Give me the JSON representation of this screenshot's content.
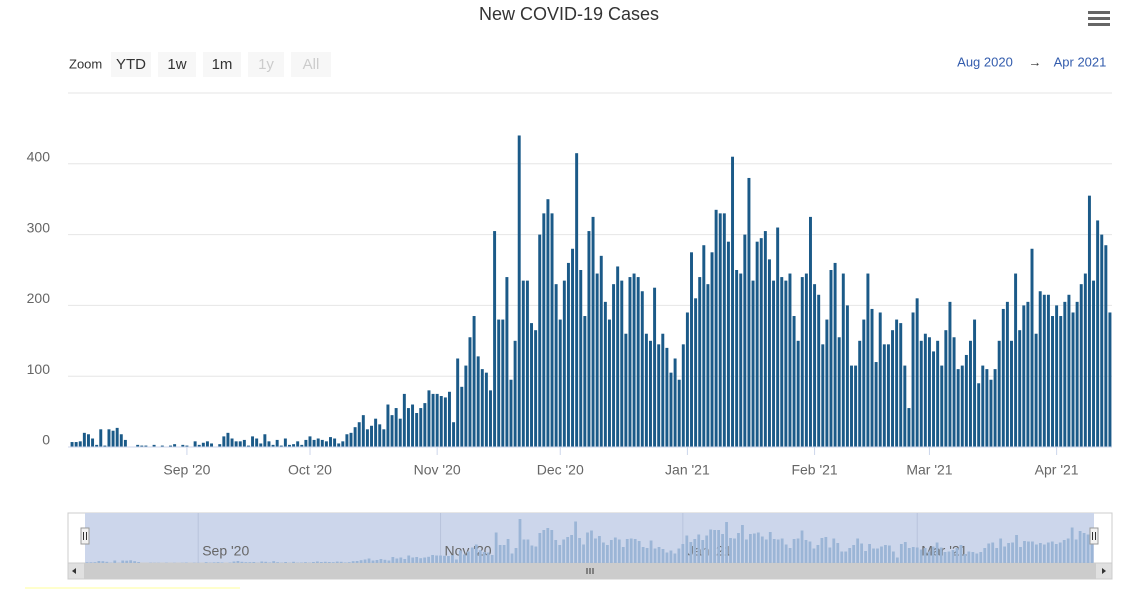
{
  "chart_data": {
    "type": "bar",
    "title": "New COVID-19 Cases",
    "zoom_label": "Zoom",
    "zoom_buttons": [
      "YTD",
      "1w",
      "1m",
      "1y",
      "All"
    ],
    "zoom_enabled": [
      true,
      true,
      true,
      false,
      false
    ],
    "range_from": "Aug 2020",
    "range_separator": "→",
    "range_to": "Apr 2021",
    "color": "#1b5a88",
    "values": [
      7,
      7,
      8,
      20,
      18,
      12,
      3,
      25,
      2,
      25,
      23,
      27,
      18,
      10,
      0,
      0,
      3,
      2,
      2,
      0,
      3,
      0,
      2,
      0,
      2,
      4,
      0,
      3,
      2,
      0,
      8,
      3,
      6,
      8,
      5,
      0,
      4,
      15,
      20,
      12,
      8,
      8,
      10,
      2,
      15,
      12,
      5,
      18,
      8,
      3,
      10,
      2,
      12,
      3,
      4,
      8,
      3,
      10,
      15,
      10,
      12,
      10,
      8,
      14,
      12,
      5,
      8,
      18,
      20,
      28,
      35,
      45,
      25,
      30,
      40,
      32,
      25,
      60,
      45,
      55,
      40,
      75,
      55,
      60,
      48,
      55,
      62,
      80,
      75,
      75,
      72,
      70,
      78,
      35,
      125,
      85,
      115,
      155,
      185,
      128,
      110,
      105,
      80,
      305,
      180,
      180,
      240,
      95,
      150,
      440,
      235,
      235,
      175,
      165,
      300,
      330,
      350,
      330,
      230,
      180,
      235,
      260,
      280,
      415,
      250,
      185,
      305,
      325,
      245,
      270,
      205,
      180,
      230,
      255,
      235,
      160,
      240,
      245,
      240,
      220,
      160,
      150,
      225,
      145,
      160,
      140,
      105,
      125,
      95,
      145,
      190,
      275,
      210,
      240,
      285,
      230,
      275,
      335,
      330,
      330,
      290,
      410,
      250,
      245,
      300,
      380,
      235,
      290,
      295,
      305,
      265,
      235,
      310,
      240,
      235,
      245,
      185,
      150,
      240,
      245,
      325,
      230,
      215,
      145,
      180,
      250,
      260,
      155,
      245,
      200,
      115,
      115,
      150,
      180,
      245,
      195,
      120,
      190,
      145,
      145,
      165,
      180,
      175,
      115,
      55,
      190,
      210,
      150,
      160,
      155,
      135,
      150,
      115,
      165,
      205,
      155,
      110,
      115,
      130,
      150,
      180,
      90,
      115,
      110,
      95,
      110,
      150,
      195,
      205,
      150,
      245,
      165,
      200,
      205,
      280,
      160,
      220,
      215,
      215,
      185,
      200,
      185,
      205,
      215,
      190,
      205,
      230,
      245,
      355,
      235,
      320,
      300,
      285,
      190
    ],
    "xlim": [
      -0.5,
      253.5
    ],
    "xticks": [
      {
        "value": 28,
        "label": "Sep '20"
      },
      {
        "value": 58,
        "label": "Oct '20"
      },
      {
        "value": 89,
        "label": "Nov '20"
      },
      {
        "value": 119,
        "label": "Dec '20"
      },
      {
        "value": 150,
        "label": "Jan '21"
      },
      {
        "value": 181,
        "label": "Feb '21"
      },
      {
        "value": 209,
        "label": "Mar '21"
      },
      {
        "value": 240,
        "label": "Apr '21"
      }
    ],
    "ylim": [
      0,
      500
    ],
    "yticks": [
      0,
      100,
      200,
      300,
      400
    ],
    "grid": true,
    "navigator": {
      "color": "#9bb5d6",
      "xticks": [
        {
          "value": 28,
          "label": "Sep '20"
        },
        {
          "value": 89,
          "label": "Nov '20"
        },
        {
          "value": 150,
          "label": "Jan '21"
        },
        {
          "value": 209,
          "label": "Mar '21"
        }
      ]
    }
  }
}
